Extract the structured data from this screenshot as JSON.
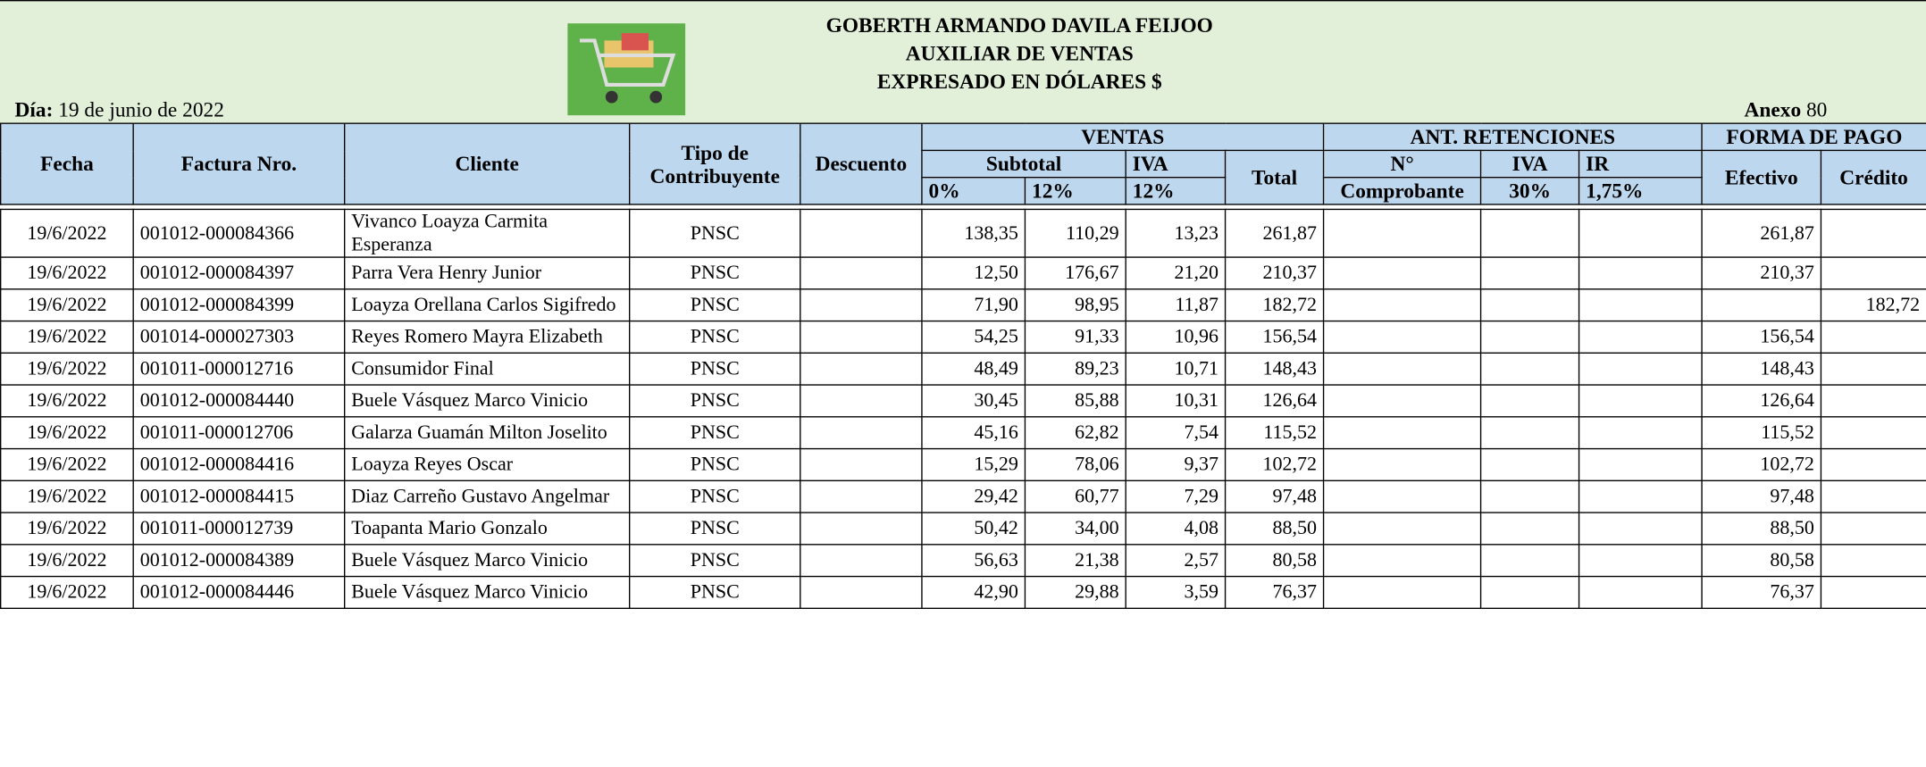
{
  "header": {
    "owner": "GOBERTH ARMANDO DAVILA FEIJOO",
    "title": "AUXILIAR DE VENTAS",
    "subtitle": "EXPRESADO EN DÓLARES $",
    "day_label": "Día:",
    "date": "19 de junio de 2022",
    "annex_label": "Anexo",
    "annex": "80"
  },
  "table": {
    "headers": {
      "fecha": "Fecha",
      "factura": "Factura Nro.",
      "cliente": "Cliente",
      "tipo": "Tipo de Contribuyente",
      "descuento": "Descuento",
      "ventas": "VENTAS",
      "retenciones": "ANT. RETENCIONES",
      "forma_pago": "FORMA DE PAGO",
      "subtotal": "Subtotal",
      "iva": "IVA",
      "total": "Total",
      "n": "N°",
      "iva_ret": "IVA",
      "ir": "IR",
      "efectivo": "Efectivo",
      "credito": "Crédito",
      "sub0": "0%",
      "sub12": "12%",
      "iva12": "12%",
      "comprobante": "Comprobante",
      "iva30": "30%",
      "ir175": "1,75%"
    },
    "rows": [
      [
        "19/6/2022",
        "001012-000084366",
        "Vivanco Loayza Carmita Esperanza",
        "PNSC",
        null,
        "138,35",
        "110,29",
        "13,23",
        "261,87",
        null,
        null,
        null,
        "261,87",
        null
      ],
      [
        "19/6/2022",
        "001012-000084397",
        "Parra Vera Henry Junior",
        "PNSC",
        null,
        "12,50",
        "176,67",
        "21,20",
        "210,37",
        null,
        null,
        null,
        "210,37",
        null
      ],
      [
        "19/6/2022",
        "001012-000084399",
        "Loayza Orellana Carlos Sigifredo",
        "PNSC",
        null,
        "71,90",
        "98,95",
        "11,87",
        "182,72",
        null,
        null,
        null,
        null,
        "182,72"
      ],
      [
        "19/6/2022",
        "001014-000027303",
        "Reyes Romero Mayra Elizabeth",
        "PNSC",
        null,
        "54,25",
        "91,33",
        "10,96",
        "156,54",
        null,
        null,
        null,
        "156,54",
        null
      ],
      [
        "19/6/2022",
        "001011-000012716",
        "Consumidor Final",
        "PNSC",
        null,
        "48,49",
        "89,23",
        "10,71",
        "148,43",
        null,
        null,
        null,
        "148,43",
        null
      ],
      [
        "19/6/2022",
        "001012-000084440",
        "Buele Vásquez Marco Vinicio",
        "PNSC",
        null,
        "30,45",
        "85,88",
        "10,31",
        "126,64",
        null,
        null,
        null,
        "126,64",
        null
      ],
      [
        "19/6/2022",
        "001011-000012706",
        "Galarza Guamán Milton Joselito",
        "PNSC",
        null,
        "45,16",
        "62,82",
        "7,54",
        "115,52",
        null,
        null,
        null,
        "115,52",
        null
      ],
      [
        "19/6/2022",
        "001012-000084416",
        "Loayza Reyes Oscar",
        "PNSC",
        null,
        "15,29",
        "78,06",
        "9,37",
        "102,72",
        null,
        null,
        null,
        "102,72",
        null
      ],
      [
        "19/6/2022",
        "001012-000084415",
        "Diaz Carreño Gustavo Angelmar",
        "PNSC",
        null,
        "29,42",
        "60,77",
        "7,29",
        "97,48",
        null,
        null,
        null,
        "97,48",
        null
      ],
      [
        "19/6/2022",
        "001011-000012739",
        "Toapanta Mario Gonzalo",
        "PNSC",
        null,
        "50,42",
        "34,00",
        "4,08",
        "88,50",
        null,
        null,
        null,
        "88,50",
        null
      ],
      [
        "19/6/2022",
        "001012-000084389",
        "Buele Vásquez Marco Vinicio",
        "PNSC",
        null,
        "56,63",
        "21,38",
        "2,57",
        "80,58",
        null,
        null,
        null,
        "80,58",
        null
      ],
      [
        "19/6/2022",
        "001012-000084446",
        "Buele Vásquez Marco Vinicio",
        "PNSC",
        null,
        "42,90",
        "29,88",
        "3,59",
        "76,37",
        null,
        null,
        null,
        "76,37",
        null
      ]
    ]
  }
}
